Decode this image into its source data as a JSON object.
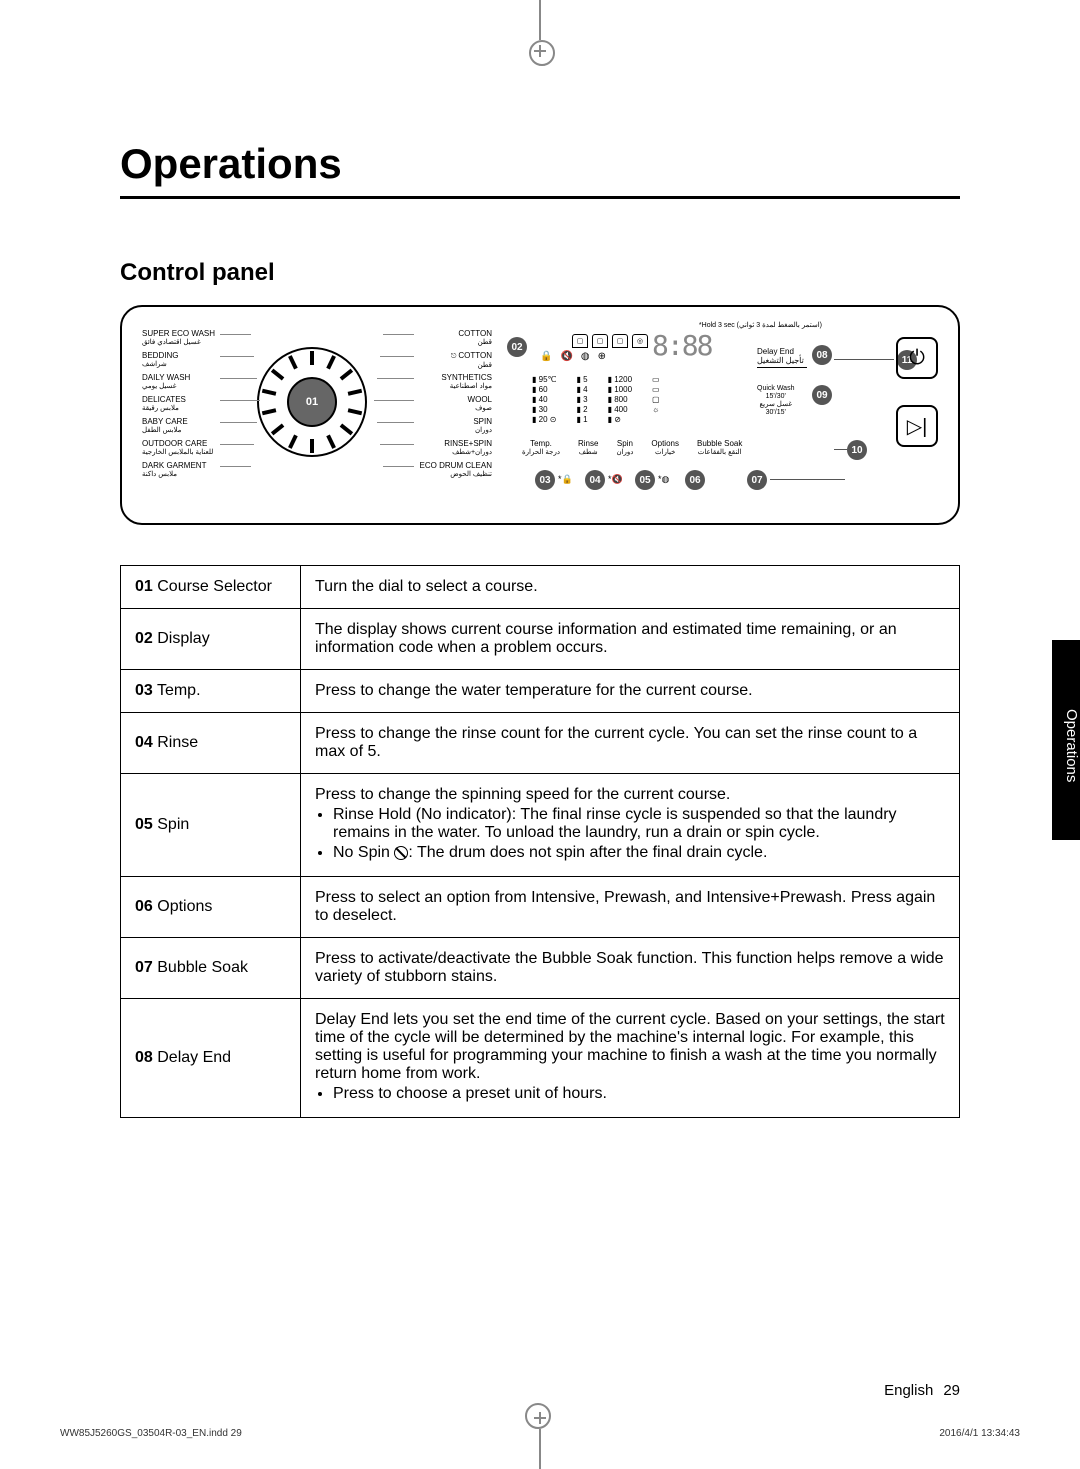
{
  "title": "Operations",
  "subtitle": "Control panel",
  "sideTab": "Operations",
  "dial": {
    "left": [
      {
        "en": "SUPER ECO WASH",
        "ar": "غسيل اقتصادي فائق"
      },
      {
        "en": "BEDDING",
        "ar": "شراشف"
      },
      {
        "en": "DAILY WASH",
        "ar": "غسيل يومي"
      },
      {
        "en": "DELICATES",
        "ar": "ملابس رقيقة"
      },
      {
        "en": "BABY CARE",
        "ar": "ملابس الطفل"
      },
      {
        "en": "OUTDOOR CARE",
        "ar": "للعناية بالملابس الخارجية"
      },
      {
        "en": "DARK GARMENT",
        "ar": "ملابس داكنة"
      }
    ],
    "right": [
      {
        "en": "COTTON",
        "ar": "قطن"
      },
      {
        "en": "COTTON",
        "ar": "قطن",
        "eco": true
      },
      {
        "en": "SYNTHETICS",
        "ar": "مواد اصطناعية"
      },
      {
        "en": "WOOL",
        "ar": "صوف"
      },
      {
        "en": "SPIN",
        "ar": "دوران"
      },
      {
        "en": "RINSE+SPIN",
        "ar": "دوران+شطف"
      },
      {
        "en": "ECO DRUM CLEAN",
        "ar": "تنظيف الحوض"
      }
    ]
  },
  "display": {
    "hold": "*Hold 3 sec (استمر بالضغط لمدة 3 ثواني)",
    "seg": "8:88",
    "temps": [
      "95℃",
      "60",
      "40",
      "30",
      "20 ⊙"
    ],
    "rinses": [
      "5",
      "4",
      "3",
      "2",
      "1"
    ],
    "spins": [
      "1200",
      "1000",
      "800",
      "400",
      "⊘"
    ],
    "labels": [
      {
        "en": "Temp.",
        "ar": "درجة الحرارة"
      },
      {
        "en": "Rinse",
        "ar": "شطف"
      },
      {
        "en": "Spin",
        "ar": "دوران"
      },
      {
        "en": "Options",
        "ar": "خيارات"
      },
      {
        "en": "Bubble Soak",
        "ar": "النقع بالفقاعات"
      }
    ],
    "delayEnd": {
      "en": "Delay End",
      "ar": "تأجيل التشغيل"
    },
    "quickWash": {
      "en": "Quick Wash",
      "line1": "15'/30'",
      "line2": "غسل سريع",
      "line3": "30'/15'"
    }
  },
  "callouts": {
    "c01": "01",
    "c02": "02",
    "c03": "03",
    "c04": "04",
    "c05": "05",
    "c06": "06",
    "c07": "07",
    "c08": "08",
    "c09": "09",
    "c10": "10",
    "c11": "11"
  },
  "table": [
    {
      "num": "01",
      "label": "Course Selector",
      "desc": "Turn the dial to select a course."
    },
    {
      "num": "02",
      "label": "Display",
      "desc": "The display shows current course information and estimated time remaining, or an information code when a problem occurs."
    },
    {
      "num": "03",
      "label": "Temp.",
      "desc": "Press to change the water temperature for the current course."
    },
    {
      "num": "04",
      "label": "Rinse",
      "desc": "Press to change the rinse count for the current cycle. You can set the rinse count to a max of 5."
    },
    {
      "num": "05",
      "label": "Spin",
      "desc": "Press to change the spinning speed for the current course.",
      "bullets": [
        "Rinse Hold (No indicator): The ﬁnal rinse cycle is suspended so that the laundry remains in the water. To unload the laundry, run a drain or spin cycle.",
        "No Spin __NOSPIN__: The drum does not spin after the ﬁnal drain cycle."
      ]
    },
    {
      "num": "06",
      "label": "Options",
      "desc": "Press to select an option from Intensive, Prewash, and Intensive+Prewash. Press again to deselect."
    },
    {
      "num": "07",
      "label": "Bubble Soak",
      "desc": "Press to activate/deactivate the Bubble Soak function. This function helps remove a wide variety of stubborn stains."
    },
    {
      "num": "08",
      "label": "Delay End",
      "desc": "Delay End lets you set the end time of the current cycle. Based on your settings, the start time of the cycle will be determined by the machine's internal logic. For example, this setting is useful for programming your machine to ﬁnish a wash at the time you normally return home from work.",
      "bullets": [
        "Press to choose a preset unit of hours."
      ]
    }
  ],
  "footer": {
    "lang": "English",
    "page": "29"
  },
  "printLeft": "WW85J5260GS_03504R-03_EN.indd   29",
  "printRight": "2016/4/1   13:34:43"
}
